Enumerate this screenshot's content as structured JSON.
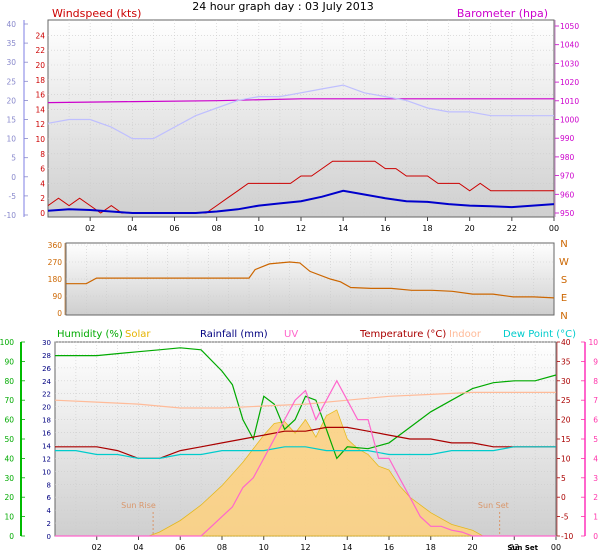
{
  "title": "24 hour graph day : 03 July 2013",
  "colors": {
    "windspeed": "#cc0000",
    "wind_avg": "#0000cc",
    "barometer": "#cc00cc",
    "barometer_line": "#bfbfff",
    "direction": "#cc6600",
    "humidity": "#00aa00",
    "solar": "#e6b400",
    "rainfall": "#000080",
    "uv": "#ff66cc",
    "temperature": "#aa0000",
    "indoor": "#ffbb99",
    "dewpoint": "#00cccc",
    "solar_fill": "#ffd27f",
    "grid": "#cccccc",
    "frame": "#666666"
  },
  "chart_data": [
    {
      "type": "line",
      "id": "wind_baro",
      "left_label": "Windspeed (kts)",
      "right_label": "Barometer (hpa)",
      "x_ticks": [
        "02",
        "04",
        "06",
        "08",
        "10",
        "12",
        "14",
        "16",
        "18",
        "20",
        "22",
        "00"
      ],
      "left_outer_ticks": [
        "40",
        "35",
        "30",
        "25",
        "20",
        "15",
        "10",
        "5",
        "0",
        "-5",
        "-10"
      ],
      "left_inner_ticks": [
        "24",
        "22",
        "20",
        "18",
        "16",
        "14",
        "12",
        "10",
        "8",
        "6",
        "4",
        "2",
        "0"
      ],
      "right_ticks": [
        "1050",
        "1040",
        "1030",
        "1020",
        "1010",
        "1000",
        "990",
        "980",
        "970",
        "960",
        "950"
      ],
      "ylim_inner": [
        0,
        25
      ],
      "ylim_outer": [
        -10,
        40
      ],
      "ylim_right": [
        947,
        1052
      ],
      "series": [
        {
          "name": "Windspeed (kts)",
          "axis": "inner",
          "color_key": "windspeed",
          "x": [
            0,
            0.5,
            1,
            1.5,
            2,
            2.5,
            3,
            3.5,
            4,
            4.5,
            5,
            5.5,
            6,
            6.5,
            7,
            7.5,
            8,
            8.5,
            9,
            9.5,
            10,
            10.5,
            11,
            11.5,
            12,
            12.5,
            13,
            13.5,
            14,
            14.5,
            15,
            15.5,
            16,
            16.5,
            17,
            17.5,
            18,
            18.5,
            19,
            19.5,
            20,
            20.5,
            21,
            21.5,
            22,
            22.5,
            23,
            23.5,
            24
          ],
          "values": [
            1,
            2,
            1,
            2,
            1,
            0,
            1,
            0,
            0,
            0,
            0,
            0,
            0,
            0,
            0,
            0,
            1,
            2,
            3,
            4,
            4,
            4,
            4,
            4,
            5,
            5,
            6,
            7,
            7,
            7,
            7,
            7,
            6,
            6,
            5,
            5,
            5,
            4,
            4,
            4,
            3,
            4,
            3,
            3,
            3,
            3,
            3,
            3,
            3
          ]
        },
        {
          "name": "Windspeed average",
          "axis": "inner",
          "color_key": "wind_avg",
          "x": [
            0,
            1,
            2,
            3,
            4,
            5,
            6,
            7,
            8,
            9,
            10,
            11,
            12,
            13,
            14,
            15,
            16,
            17,
            18,
            19,
            20,
            21,
            22,
            23,
            24
          ],
          "values": [
            0.3,
            0.5,
            0.4,
            0.2,
            0,
            0,
            0,
            0,
            0.2,
            0.5,
            1,
            1.3,
            1.6,
            2.2,
            3,
            2.5,
            2,
            1.6,
            1.5,
            1.2,
            1,
            0.9,
            0.8,
            1,
            1.2
          ]
        },
        {
          "name": "Barometer (hpa)",
          "axis": "right",
          "color_key": "barometer",
          "x": [
            0,
            4,
            8,
            12,
            16,
            20,
            24
          ],
          "values": [
            1008,
            1008.5,
            1009,
            1010,
            1010,
            1010,
            1010
          ]
        },
        {
          "name": "Windspeed gust",
          "axis": "outer",
          "color_key": "barometer_line",
          "x": [
            0,
            1,
            2,
            3,
            4,
            5,
            6,
            7,
            8,
            9,
            10,
            11,
            12,
            13,
            14,
            15,
            16,
            17,
            18,
            19,
            20,
            21,
            22,
            23,
            24
          ],
          "values": [
            14,
            15,
            15,
            13,
            10,
            10,
            13,
            16,
            18,
            20,
            21,
            21,
            22,
            23,
            24,
            22,
            21,
            20,
            18,
            17,
            17,
            16,
            16,
            16,
            16
          ]
        }
      ]
    },
    {
      "type": "line",
      "id": "direction",
      "left_ticks": [
        "360",
        "270",
        "180",
        "90",
        "0"
      ],
      "right_ticks": [
        "N",
        "W",
        "S",
        "E",
        "N"
      ],
      "ylim": [
        0,
        360
      ],
      "series": [
        {
          "name": "Wind direction",
          "color_key": "direction",
          "x": [
            0,
            1,
            1.5,
            2,
            3,
            4,
            5,
            6,
            7,
            8,
            9,
            9.3,
            10,
            11,
            11.5,
            12,
            13,
            13.5,
            14,
            15,
            16,
            17,
            18,
            19,
            20,
            21,
            22,
            23,
            24
          ],
          "values": [
            155,
            155,
            185,
            185,
            185,
            185,
            185,
            185,
            185,
            185,
            185,
            230,
            260,
            270,
            265,
            220,
            180,
            165,
            135,
            130,
            130,
            120,
            120,
            115,
            100,
            100,
            85,
            85,
            80
          ]
        }
      ]
    },
    {
      "type": "area",
      "id": "multi",
      "legend": [
        "Humidity (%)",
        "Solar",
        "Rainfall (mm)",
        "UV",
        "Temperature (°C)",
        "Indoor",
        "Dew Point (°C)"
      ],
      "x_ticks": [
        "02",
        "04",
        "06",
        "08",
        "10",
        "12",
        "14",
        "16",
        "18",
        "20",
        "22",
        "00"
      ],
      "annotations": [
        "Sun Rise",
        "Sun Set",
        "Sun Set"
      ],
      "left_outer_ticks": [
        "100",
        "90",
        "80",
        "70",
        "60",
        "50",
        "40",
        "30",
        "20",
        "10",
        "0"
      ],
      "left_inner_ticks": [
        "30",
        "28",
        "26",
        "24",
        "22",
        "20",
        "18",
        "16",
        "14",
        "12",
        "10",
        "8",
        "6",
        "4",
        "2",
        "0"
      ],
      "right_inner_ticks": [
        "40",
        "35",
        "30",
        "25",
        "20",
        "15",
        "10",
        "5",
        "0",
        "-5",
        "-10"
      ],
      "right_outer_ticks": [
        "10",
        "9",
        "8",
        "7",
        "6",
        "5",
        "4",
        "3",
        "2",
        "1",
        "0"
      ],
      "ylim_humidity": [
        0,
        100
      ],
      "ylim_temp": [
        -10,
        40
      ],
      "ylim_uv": [
        0,
        10
      ],
      "series": [
        {
          "name": "Humidity (%)",
          "axis": "humidity",
          "color_key": "humidity",
          "x": [
            0,
            1,
            2,
            3,
            4,
            5,
            6,
            7,
            8,
            8.5,
            9,
            9.5,
            10,
            10.5,
            11,
            11.5,
            12,
            12.5,
            13,
            13.5,
            14,
            15,
            16,
            17,
            18,
            19,
            20,
            21,
            22,
            23,
            24
          ],
          "values": [
            93,
            93,
            93,
            94,
            95,
            96,
            97,
            96,
            85,
            78,
            60,
            50,
            72,
            68,
            55,
            60,
            72,
            70,
            55,
            40,
            46,
            45,
            48,
            56,
            64,
            70,
            76,
            79,
            80,
            80,
            83
          ]
        },
        {
          "name": "Temperature (°C)",
          "axis": "temp",
          "color_key": "temperature",
          "x": [
            0,
            1,
            2,
            3,
            4,
            5,
            6,
            7,
            8,
            9,
            10,
            11,
            12,
            13,
            14,
            15,
            16,
            17,
            18,
            19,
            20,
            21,
            22,
            23,
            24
          ],
          "values": [
            13,
            13,
            13,
            12,
            10,
            10,
            12,
            13,
            14,
            15,
            16,
            17,
            17,
            18,
            18,
            17,
            16,
            15,
            15,
            14,
            14,
            13,
            13,
            13,
            13
          ]
        },
        {
          "name": "Indoor",
          "axis": "temp",
          "color_key": "indoor",
          "x": [
            0,
            2,
            4,
            6,
            8,
            10,
            12,
            14,
            16,
            18,
            20,
            22,
            24
          ],
          "values": [
            25,
            24.5,
            24,
            23,
            23,
            23.5,
            24,
            25,
            26,
            26.5,
            27,
            27,
            27
          ]
        },
        {
          "name": "Dew Point (°C)",
          "axis": "temp",
          "color_key": "dewpoint",
          "x": [
            0,
            1,
            2,
            3,
            4,
            5,
            6,
            7,
            8,
            9,
            10,
            11,
            12,
            13,
            14,
            15,
            16,
            17,
            18,
            19,
            20,
            21,
            22,
            23,
            24
          ],
          "values": [
            12,
            12,
            11,
            11,
            10,
            10,
            11,
            11,
            12,
            12,
            12,
            13,
            13,
            12,
            12,
            12,
            11,
            11,
            11,
            12,
            12,
            12,
            13,
            13,
            13
          ]
        },
        {
          "name": "UV",
          "axis": "uv",
          "color_key": "uv",
          "x": [
            0,
            4,
            4.5,
            5,
            5.5,
            6,
            6.5,
            7,
            7.5,
            8,
            8.5,
            9,
            9.5,
            10,
            10.5,
            11,
            11.5,
            12,
            12.5,
            13,
            13.5,
            14,
            14.5,
            15,
            15.5,
            16,
            16.5,
            17,
            17.5,
            18,
            18.5,
            19,
            19.5,
            20,
            24
          ],
          "values": [
            0,
            0,
            0,
            0,
            0,
            0,
            0,
            0,
            0.5,
            1,
            1.5,
            2.5,
            3,
            4,
            5,
            6,
            7,
            7.5,
            6,
            7,
            8,
            7,
            6,
            6,
            4,
            4,
            3,
            2,
            1,
            0.5,
            0.5,
            0.3,
            0.2,
            0,
            0
          ]
        },
        {
          "name": "Solar",
          "axis": "uv",
          "color_key": "solar",
          "x": [
            0,
            4.5,
            5,
            6,
            7,
            8,
            9,
            10,
            10.5,
            11,
            11.5,
            12,
            12.5,
            13,
            13.5,
            14,
            14.5,
            15,
            15.5,
            16,
            16.5,
            17,
            18,
            19,
            20,
            20.5,
            24
          ],
          "values": [
            0,
            0,
            0.2,
            0.8,
            1.6,
            2.6,
            3.8,
            5.2,
            5.8,
            5.9,
            5.3,
            6,
            5.1,
            6.2,
            6.5,
            5,
            4.5,
            4.2,
            3.6,
            3.4,
            2.6,
            2,
            1.2,
            0.6,
            0.3,
            0,
            0
          ]
        }
      ]
    }
  ]
}
